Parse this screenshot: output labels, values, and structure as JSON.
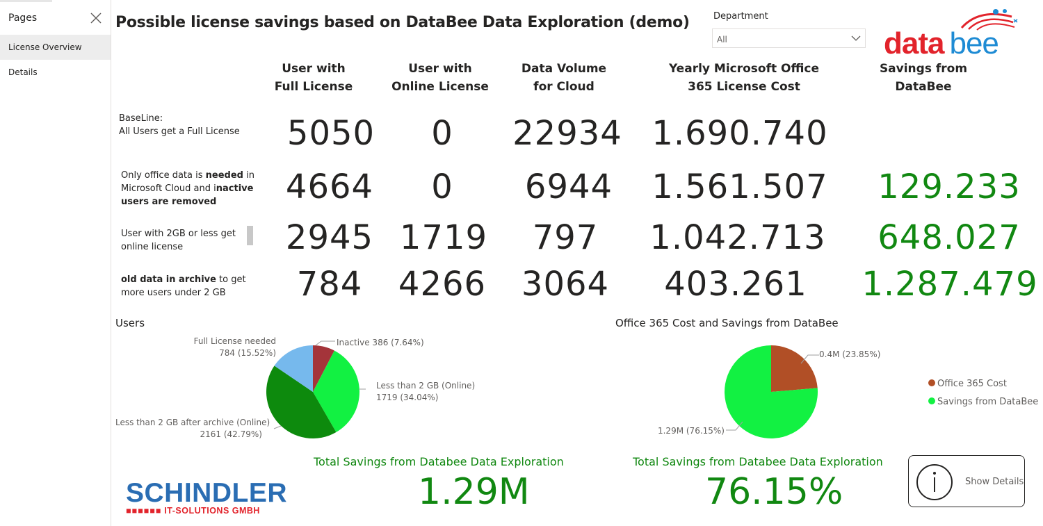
{
  "sidebar": {
    "header": "Pages",
    "items": [
      {
        "label": "License Overview",
        "active": true
      },
      {
        "label": "Details",
        "active": false
      }
    ]
  },
  "title": "Possible license savings based on DataBee Data Exploration (demo)",
  "filter": {
    "label": "Department",
    "value": "All"
  },
  "logo": {
    "part1": "data",
    "part2": "bee"
  },
  "table": {
    "columns": [
      "User with\nFull License",
      "User with\nOnline License",
      "Data Volume\nfor Cloud",
      "Yearly Microsoft Office\n365 License Cost",
      "Savings from\nDataBee"
    ],
    "rows": [
      {
        "label_line1": "BaseLine:",
        "label_line2": "All Users get a Full License",
        "values": [
          "5050",
          "0",
          "22934",
          "1.690.740",
          ""
        ]
      },
      {
        "label_p1": "Only office data is ",
        "label_b1": "needed",
        "label_p2": " in",
        "label_p3": "Microsoft Cloud and i",
        "label_b2": "nactive",
        "label_b3": "users are removed",
        "values": [
          "4664",
          "0",
          "6944",
          "1.561.507",
          "129.233"
        ]
      },
      {
        "label_line1": "User with  2GB or less get",
        "label_line2": "online license",
        "values": [
          "2945",
          "1719",
          "797",
          "1.042.713",
          "648.027"
        ]
      },
      {
        "label_b1": "old data in archive",
        "label_p1": " to get",
        "label_line2": "more users under 2 GB",
        "values": [
          "784",
          "4266",
          "3064",
          "403.261",
          "1.287.479"
        ]
      }
    ]
  },
  "users_chart": {
    "title": "Users",
    "labels": {
      "full": {
        "name": "Full License needed",
        "detail": "784 (15.52%)"
      },
      "inactive": {
        "name": "Inactive 386 (7.64%)"
      },
      "online": {
        "name": "Less than 2 GB (Online)",
        "detail": "1719 (34.04%)"
      },
      "archive": {
        "name": "Less than 2 GB after archive (Online)",
        "detail": "2161 (42.79%)"
      }
    }
  },
  "cost_chart": {
    "title": "Office 365 Cost and Savings from DataBee",
    "labels": {
      "cost": "0.4M (23.85%)",
      "savings": "1.29M (76.15%)"
    },
    "legend": [
      "Office 365 Cost",
      "Savings from DataBee"
    ]
  },
  "chart_data": [
    {
      "type": "pie",
      "title": "Users",
      "categories": [
        "Inactive",
        "Less than 2 GB (Online)",
        "Less than 2 GB after archive (Online)",
        "Full License needed"
      ],
      "values": [
        386,
        1719,
        2161,
        784
      ],
      "percentages": [
        7.64,
        34.04,
        42.79,
        15.52
      ],
      "colors": [
        "#a4343a",
        "#12f142",
        "#0d8a0d",
        "#76b9ed"
      ]
    },
    {
      "type": "pie",
      "title": "Office 365 Cost and Savings from DataBee",
      "categories": [
        "Office 365 Cost",
        "Savings from DataBee"
      ],
      "values": [
        0.4,
        1.29
      ],
      "percentages": [
        23.85,
        76.15
      ],
      "colors": [
        "#b14f26",
        "#12f142"
      ],
      "legend_position": "right"
    }
  ],
  "cards": [
    {
      "label": "Total Savings from Databee Data Exploration",
      "value": "1.29M"
    },
    {
      "label": "Total Savings from Databee Data Exploration",
      "value": "76.15%"
    }
  ],
  "company_logo": {
    "name": "SCHINDLER",
    "bars": "■■■■■■",
    "sub": "IT-SOLUTIONS GMBH"
  },
  "details_button": {
    "label": "Show Details"
  },
  "colors": {
    "green_value": "#118811",
    "text": "#252423"
  }
}
